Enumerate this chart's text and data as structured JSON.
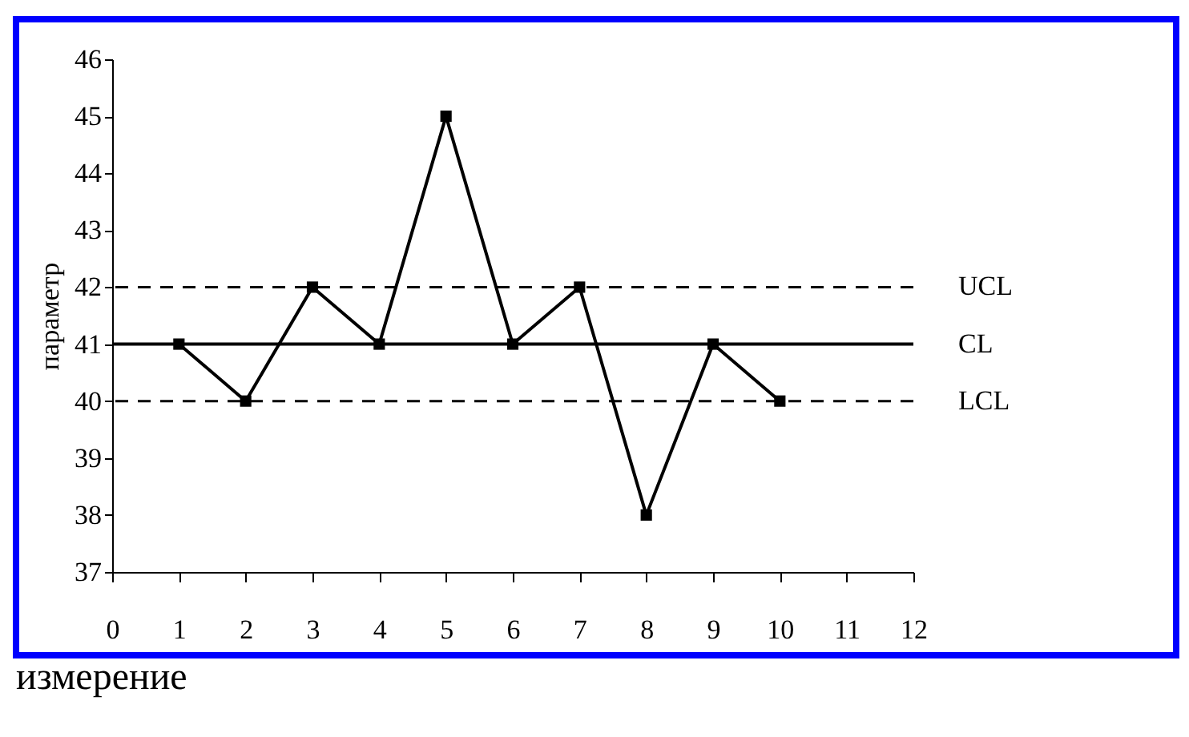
{
  "chart_data": {
    "type": "line",
    "xlabel": "измерение",
    "ylabel": "параметр",
    "x": [
      1,
      2,
      3,
      4,
      5,
      6,
      7,
      8,
      9,
      10
    ],
    "values": [
      41,
      40,
      42,
      41,
      45,
      41,
      42,
      38,
      41,
      40
    ],
    "color": "#000000",
    "marker": "square",
    "line_style": "solid",
    "grid": false,
    "xlim": [
      0,
      12
    ],
    "xticks": [
      0,
      1,
      2,
      3,
      4,
      5,
      6,
      7,
      8,
      9,
      10,
      11,
      12
    ],
    "ylim": [
      37,
      46
    ],
    "yticks": [
      37,
      38,
      39,
      40,
      41,
      42,
      43,
      44,
      45,
      46
    ],
    "ref_lines": [
      {
        "axis": "y",
        "value": 42,
        "label": "UCL",
        "line_style": "dashed",
        "color": "#000000"
      },
      {
        "axis": "y",
        "value": 41,
        "label": "CL",
        "line_style": "solid",
        "color": "#000000"
      },
      {
        "axis": "y",
        "value": 40,
        "label": "LCL",
        "line_style": "dashed",
        "color": "#000000"
      }
    ]
  }
}
